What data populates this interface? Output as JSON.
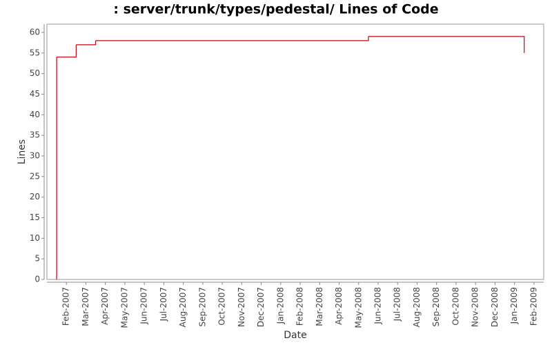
{
  "chart_data": {
    "type": "step-line",
    "title": ": server/trunk/types/pedestal/ Lines of Code",
    "x_label": "Date",
    "y_label": "Lines",
    "x": [
      "2007-01",
      "2007-01",
      "2007-02",
      "2007-03",
      "2008-05",
      "2009-01"
    ],
    "series": [
      {
        "color": "#c0000f",
        "values": [
          0,
          54,
          57,
          58,
          59,
          55
        ]
      }
    ],
    "xlim": [
      "2007-01",
      "2009-02"
    ],
    "xticks": [
      {
        "value": "2007-02",
        "label": "Feb-2007"
      },
      {
        "value": "2007-03",
        "label": "Mar-2007"
      },
      {
        "value": "2007-04",
        "label": "Apr-2007"
      },
      {
        "value": "2007-05",
        "label": "May-2007"
      },
      {
        "value": "2007-06",
        "label": "Jun-2007"
      },
      {
        "value": "2007-07",
        "label": "Jul-2007"
      },
      {
        "value": "2007-08",
        "label": "Aug-2007"
      },
      {
        "value": "2007-09",
        "label": "Sep-2007"
      },
      {
        "value": "2007-10",
        "label": "Oct-2007"
      },
      {
        "value": "2007-11",
        "label": "Nov-2007"
      },
      {
        "value": "2007-12",
        "label": "Dec-2007"
      },
      {
        "value": "2008-01",
        "label": "Jan-2008"
      },
      {
        "value": "2008-02",
        "label": "Feb-2008"
      },
      {
        "value": "2008-03",
        "label": "Mar-2008"
      },
      {
        "value": "2008-04",
        "label": "Apr-2008"
      },
      {
        "value": "2008-05",
        "label": "May-2008"
      },
      {
        "value": "2008-06",
        "label": "Jun-2008"
      },
      {
        "value": "2008-07",
        "label": "Jul-2008"
      },
      {
        "value": "2008-08",
        "label": "Aug-2008"
      },
      {
        "value": "2008-09",
        "label": "Sep-2008"
      },
      {
        "value": "2008-10",
        "label": "Oct-2008"
      },
      {
        "value": "2008-11",
        "label": "Nov-2008"
      },
      {
        "value": "2008-12",
        "label": "Dec-2008"
      },
      {
        "value": "2009-01",
        "label": "Jan-2009"
      },
      {
        "value": "2009-02",
        "label": "Feb-2009"
      }
    ],
    "ylim": [
      0,
      62
    ],
    "yticks": [
      0,
      5,
      10,
      15,
      20,
      25,
      30,
      35,
      40,
      45,
      50,
      55,
      60
    ],
    "grid": false
  }
}
